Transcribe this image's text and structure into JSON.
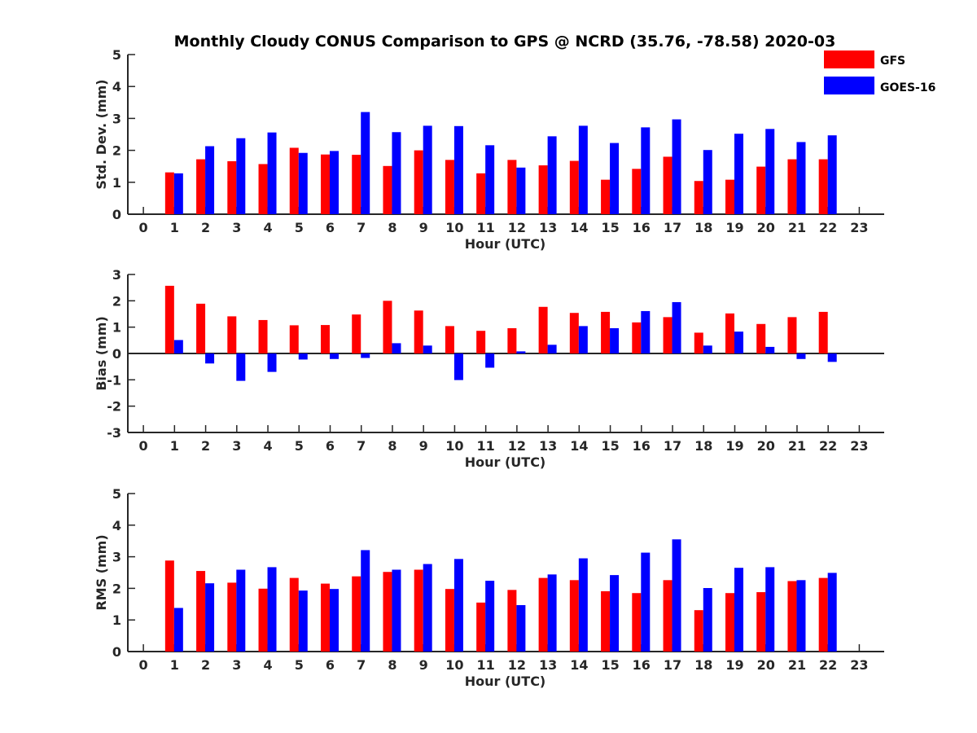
{
  "title": "Monthly Cloudy CONUS Comparison to GPS @ NCRD (35.76, -78.58) 2020-03",
  "legend": {
    "placement": "top-right",
    "entries": [
      {
        "label": "GFS",
        "color": "#ff0000"
      },
      {
        "label": "GOES-16",
        "color": "#0000ff"
      }
    ]
  },
  "chart_data": [
    {
      "type": "bar",
      "xlabel": "Hour (UTC)",
      "ylabel": "Std. Dev. (mm)",
      "xlim": [
        -0.5,
        23.8
      ],
      "ylim": [
        0,
        5
      ],
      "x_ticks": [
        0,
        1,
        2,
        3,
        4,
        5,
        6,
        7,
        8,
        9,
        10,
        11,
        12,
        13,
        14,
        15,
        16,
        17,
        18,
        19,
        20,
        21,
        22,
        23
      ],
      "y_ticks": [
        0,
        1,
        2,
        3,
        4,
        5
      ],
      "categories": [
        1,
        2,
        3,
        4,
        5,
        6,
        7,
        8,
        9,
        10,
        11,
        12,
        13,
        14,
        15,
        16,
        17,
        18,
        19,
        20,
        21,
        22
      ],
      "series": [
        {
          "name": "GFS",
          "color": "#ff0000",
          "values": [
            1.31,
            1.72,
            1.66,
            1.57,
            2.08,
            1.87,
            1.86,
            1.51,
            2.0,
            1.7,
            1.28,
            1.7,
            1.53,
            1.67,
            1.08,
            1.42,
            1.8,
            1.04,
            1.08,
            1.49,
            1.72,
            1.72
          ]
        },
        {
          "name": "GOES-16",
          "color": "#0000ff",
          "values": [
            1.28,
            2.13,
            2.38,
            2.56,
            1.92,
            1.98,
            3.2,
            2.57,
            2.77,
            2.76,
            2.16,
            1.46,
            2.44,
            2.77,
            2.23,
            2.72,
            2.97,
            2.01,
            2.52,
            2.67,
            2.26,
            2.47
          ]
        }
      ]
    },
    {
      "type": "bar",
      "xlabel": "Hour (UTC)",
      "ylabel": "Bias (mm)",
      "xlim": [
        -0.5,
        23.8
      ],
      "ylim": [
        -3,
        3
      ],
      "x_ticks": [
        0,
        1,
        2,
        3,
        4,
        5,
        6,
        7,
        8,
        9,
        10,
        11,
        12,
        13,
        14,
        15,
        16,
        17,
        18,
        19,
        20,
        21,
        22,
        23
      ],
      "y_ticks": [
        -3,
        -2,
        -1,
        0,
        1,
        2,
        3
      ],
      "zero_line": true,
      "categories": [
        1,
        2,
        3,
        4,
        5,
        6,
        7,
        8,
        9,
        10,
        11,
        12,
        13,
        14,
        15,
        16,
        17,
        18,
        19,
        20,
        21,
        22
      ],
      "series": [
        {
          "name": "GFS",
          "color": "#ff0000",
          "values": [
            2.57,
            1.89,
            1.41,
            1.27,
            1.07,
            1.08,
            1.48,
            2.0,
            1.63,
            1.04,
            0.86,
            0.96,
            1.77,
            1.54,
            1.58,
            1.18,
            1.38,
            0.79,
            1.52,
            1.12,
            1.38,
            1.58
          ]
        },
        {
          "name": "GOES-16",
          "color": "#0000ff",
          "values": [
            0.51,
            -0.38,
            -1.04,
            -0.7,
            -0.23,
            -0.21,
            -0.17,
            0.39,
            0.3,
            -1.01,
            -0.54,
            0.08,
            0.33,
            1.04,
            0.96,
            1.61,
            1.95,
            0.3,
            0.83,
            0.25,
            -0.21,
            -0.32
          ]
        }
      ]
    },
    {
      "type": "bar",
      "xlabel": "Hour (UTC)",
      "ylabel": "RMS (mm)",
      "xlim": [
        -0.5,
        23.8
      ],
      "ylim": [
        0,
        5
      ],
      "x_ticks": [
        0,
        1,
        2,
        3,
        4,
        5,
        6,
        7,
        8,
        9,
        10,
        11,
        12,
        13,
        14,
        15,
        16,
        17,
        18,
        19,
        20,
        21,
        22,
        23
      ],
      "y_ticks": [
        0,
        1,
        2,
        3,
        4,
        5
      ],
      "categories": [
        1,
        2,
        3,
        4,
        5,
        6,
        7,
        8,
        9,
        10,
        11,
        12,
        13,
        14,
        15,
        16,
        17,
        18,
        19,
        20,
        21,
        22
      ],
      "series": [
        {
          "name": "GFS",
          "color": "#ff0000",
          "values": [
            2.88,
            2.55,
            2.18,
            1.99,
            2.33,
            2.15,
            2.38,
            2.52,
            2.59,
            1.98,
            1.55,
            1.95,
            2.33,
            2.26,
            1.91,
            1.85,
            2.26,
            1.31,
            1.85,
            1.88,
            2.23,
            2.33
          ]
        },
        {
          "name": "GOES-16",
          "color": "#0000ff",
          "values": [
            1.38,
            2.16,
            2.59,
            2.67,
            1.93,
            1.98,
            3.21,
            2.59,
            2.77,
            2.93,
            2.24,
            1.47,
            2.44,
            2.95,
            2.42,
            3.13,
            3.55,
            2.01,
            2.65,
            2.67,
            2.26,
            2.49
          ]
        }
      ]
    }
  ]
}
